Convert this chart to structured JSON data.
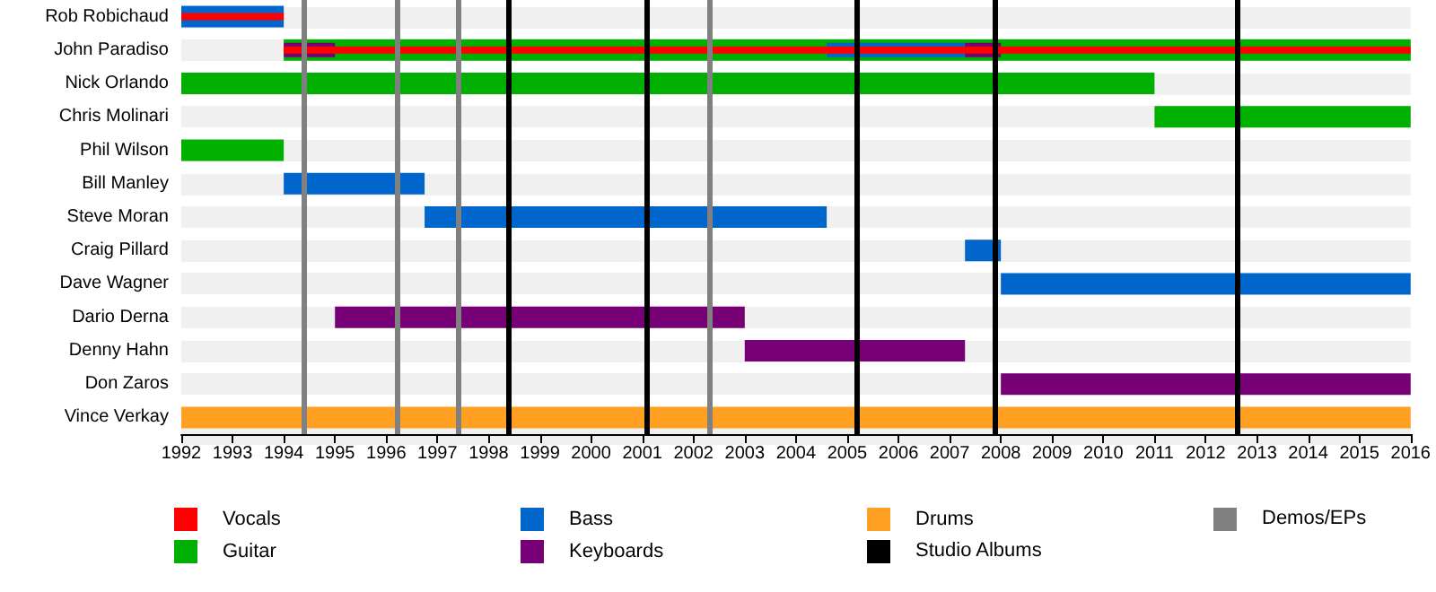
{
  "chart_data": {
    "type": "bar",
    "orientation": "horizontal",
    "categories": [
      "Rob Robichaud",
      "John Paradiso",
      "Nick Orlando",
      "Chris Molinari",
      "Phil Wilson",
      "Bill Manley",
      "Steve Moran",
      "Craig Pillard",
      "Dave Wagner",
      "Dario Derna",
      "Denny Hahn",
      "Don Zaros",
      "Vince Verkay"
    ],
    "series": [
      {
        "name": "Vocals",
        "color": "#ff0000",
        "base": [
          1992,
          1994,
          null,
          null,
          null,
          null,
          null,
          null,
          null,
          null,
          null,
          null,
          null
        ],
        "values": [
          2,
          22,
          null,
          null,
          null,
          null,
          null,
          null,
          null,
          null,
          null,
          null,
          null
        ]
      },
      {
        "name": "Guitar",
        "color": "#00b000",
        "base": [
          null,
          1994,
          1992,
          2011,
          1992,
          null,
          null,
          null,
          null,
          null,
          null,
          null,
          null
        ],
        "values": [
          null,
          22,
          19,
          5,
          2,
          null,
          null,
          null,
          null,
          null,
          null,
          null,
          null
        ]
      },
      {
        "name": "Bass",
        "color": "#0066cc",
        "base": [
          1992,
          2004.6,
          null,
          null,
          null,
          1994,
          1996.75,
          2007.3,
          2008,
          null,
          null,
          null,
          null
        ],
        "values": [
          2,
          2.7,
          null,
          null,
          null,
          2.75,
          7.85,
          0.7,
          8,
          null,
          null,
          null,
          null
        ]
      },
      {
        "name": "Keyboards",
        "color": "#770077",
        "base": [
          null,
          1994,
          null,
          null,
          null,
          null,
          null,
          null,
          null,
          1995,
          2003,
          2008,
          null
        ],
        "values": [
          null,
          1,
          null,
          null,
          null,
          null,
          null,
          null,
          null,
          8,
          4.3,
          8,
          null
        ]
      },
      {
        "name": "Drums",
        "color": "#ffa023",
        "base": [
          null,
          null,
          null,
          null,
          null,
          null,
          null,
          null,
          null,
          null,
          null,
          null,
          1992
        ],
        "values": [
          null,
          null,
          null,
          null,
          null,
          null,
          null,
          null,
          null,
          null,
          null,
          null,
          24
        ]
      },
      {
        "color": "#770077",
        "base": [
          null,
          2007.3,
          null,
          null,
          null,
          null,
          null,
          null,
          null,
          null,
          null,
          null,
          null
        ],
        "values": [
          null,
          0.7,
          null,
          null,
          null,
          null,
          null,
          null,
          null,
          null,
          null,
          null,
          null
        ]
      }
    ],
    "xlim": [
      1992,
      2016
    ],
    "xticks": [
      1992,
      1993,
      1994,
      1995,
      1996,
      1997,
      1998,
      1999,
      2000,
      2001,
      2002,
      2003,
      2004,
      2005,
      2006,
      2007,
      2008,
      2009,
      2010,
      2011,
      2012,
      2013,
      2014,
      2015,
      2016
    ],
    "ref_lines": [
      {
        "axis": "x",
        "value": 1998.4,
        "label": "Studio Albums",
        "color": "#000000"
      },
      {
        "axis": "x",
        "value": 2001.1,
        "color": "#000000"
      },
      {
        "axis": "x",
        "value": 2005.2,
        "color": "#000000"
      },
      {
        "axis": "x",
        "value": 2007.9,
        "color": "#000000"
      },
      {
        "axis": "x",
        "value": 2012.6,
        "color": "#000000"
      },
      {
        "axis": "x",
        "value": 1994.4,
        "label": "Demos/EPs",
        "color": "#808080"
      },
      {
        "axis": "x",
        "value": 1996.2,
        "color": "#808080"
      },
      {
        "axis": "x",
        "value": 1997.4,
        "color": "#808080"
      },
      {
        "axis": "x",
        "value": 2002.3,
        "color": "#808080"
      }
    ],
    "grid": "y",
    "legend": "bottom"
  }
}
